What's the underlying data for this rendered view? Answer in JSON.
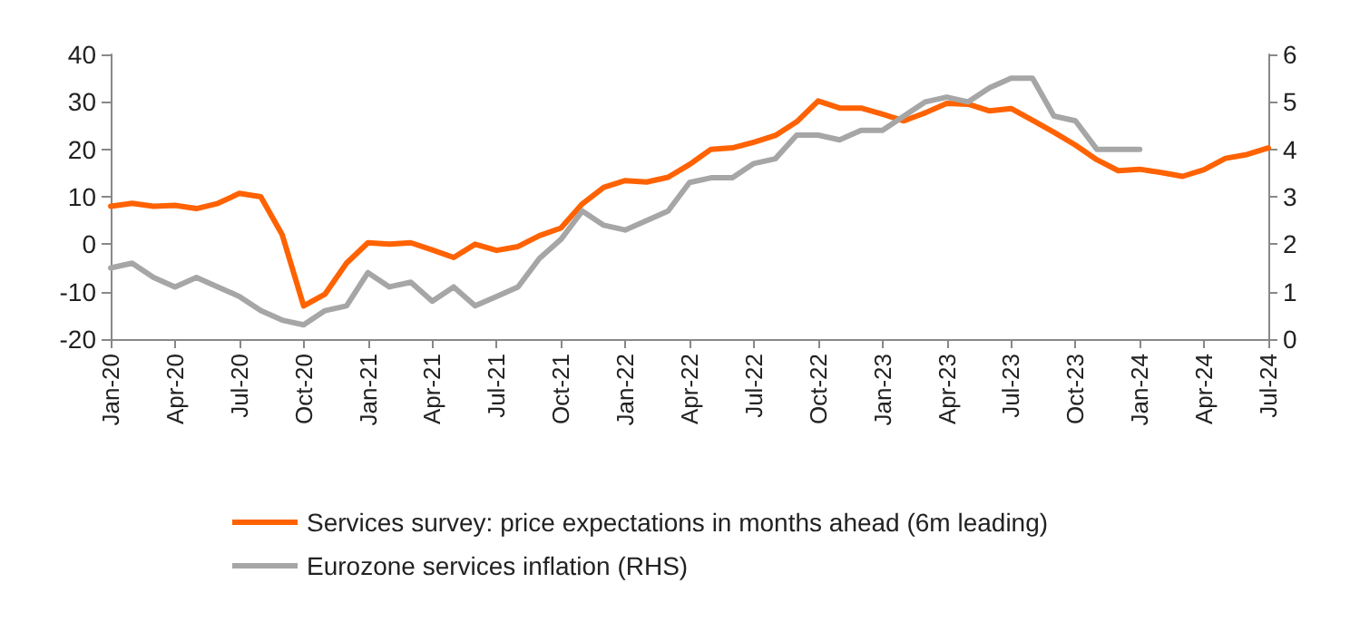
{
  "chart_data": {
    "type": "line",
    "categories": [
      "Jan-20",
      null,
      null,
      "Apr-20",
      null,
      null,
      "Jul-20",
      null,
      null,
      "Oct-20",
      null,
      null,
      "Jan-21",
      null,
      null,
      "Apr-21",
      null,
      null,
      "Jul-21",
      null,
      null,
      "Oct-21",
      null,
      null,
      "Jan-22",
      null,
      null,
      "Apr-22",
      null,
      null,
      "Jul-22",
      null,
      null,
      "Oct-22",
      null,
      null,
      "Jan-23",
      null,
      null,
      "Apr-23",
      null,
      null,
      "Jul-23",
      null,
      null,
      "Oct-23",
      null,
      null,
      "Jan-24",
      null,
      null,
      "Apr-24",
      null,
      null,
      "Jul-24"
    ],
    "series": [
      {
        "name": "Services survey: price expectations in months ahead (6m leading)",
        "color": "#ff6200",
        "values": [
          8,
          8.6,
          8,
          8.2,
          7.5,
          8.6,
          10.7,
          10,
          2,
          -13,
          -10.5,
          -4,
          0.3,
          0,
          0.3,
          -1.2,
          -2.8,
          0,
          -1.3,
          -0.5,
          1.8,
          3.4,
          8.5,
          12,
          13.4,
          13.1,
          14.1,
          16.8,
          20,
          20.3,
          21.5,
          22.9,
          25.8,
          30.2,
          28.7,
          28.7,
          27.4,
          26,
          27.7,
          29.7,
          29.5,
          28.1,
          28.6,
          26.1,
          23.6,
          20.9,
          17.8,
          15.5,
          15.8,
          15.1,
          14.3,
          15.7,
          18.1,
          18.9,
          20.3
        ]
      },
      {
        "name": "Eurozone services inflation (RHS)",
        "color": "#a6a6a6",
        "axis": "y2",
        "values": [
          1.5,
          1.6,
          1.3,
          1.1,
          1.3,
          1.1,
          0.9,
          0.6,
          0.4,
          0.3,
          0.6,
          0.7,
          1.4,
          1.1,
          1.2,
          0.8,
          1.1,
          0.7,
          0.9,
          1.1,
          1.7,
          2.1,
          2.7,
          2.4,
          2.3,
          2.5,
          2.7,
          3.3,
          3.4,
          3.4,
          3.7,
          3.8,
          4.3,
          4.3,
          4.2,
          4.4,
          4.4,
          4.7,
          5,
          5.1,
          5,
          5.3,
          5.5,
          5.5,
          4.7,
          4.6,
          4,
          4,
          4,
          null,
          null,
          null,
          null,
          null,
          null
        ]
      }
    ],
    "ylim": [
      -20,
      40
    ],
    "yticks": [
      -20,
      -10,
      0,
      10,
      20,
      30,
      40
    ],
    "y2lim": [
      0,
      6
    ],
    "y2ticks": [
      0,
      1,
      2,
      3,
      4,
      5,
      6
    ],
    "grid": false,
    "legend": "bottom",
    "marker": "none",
    "line_style": "solid"
  }
}
